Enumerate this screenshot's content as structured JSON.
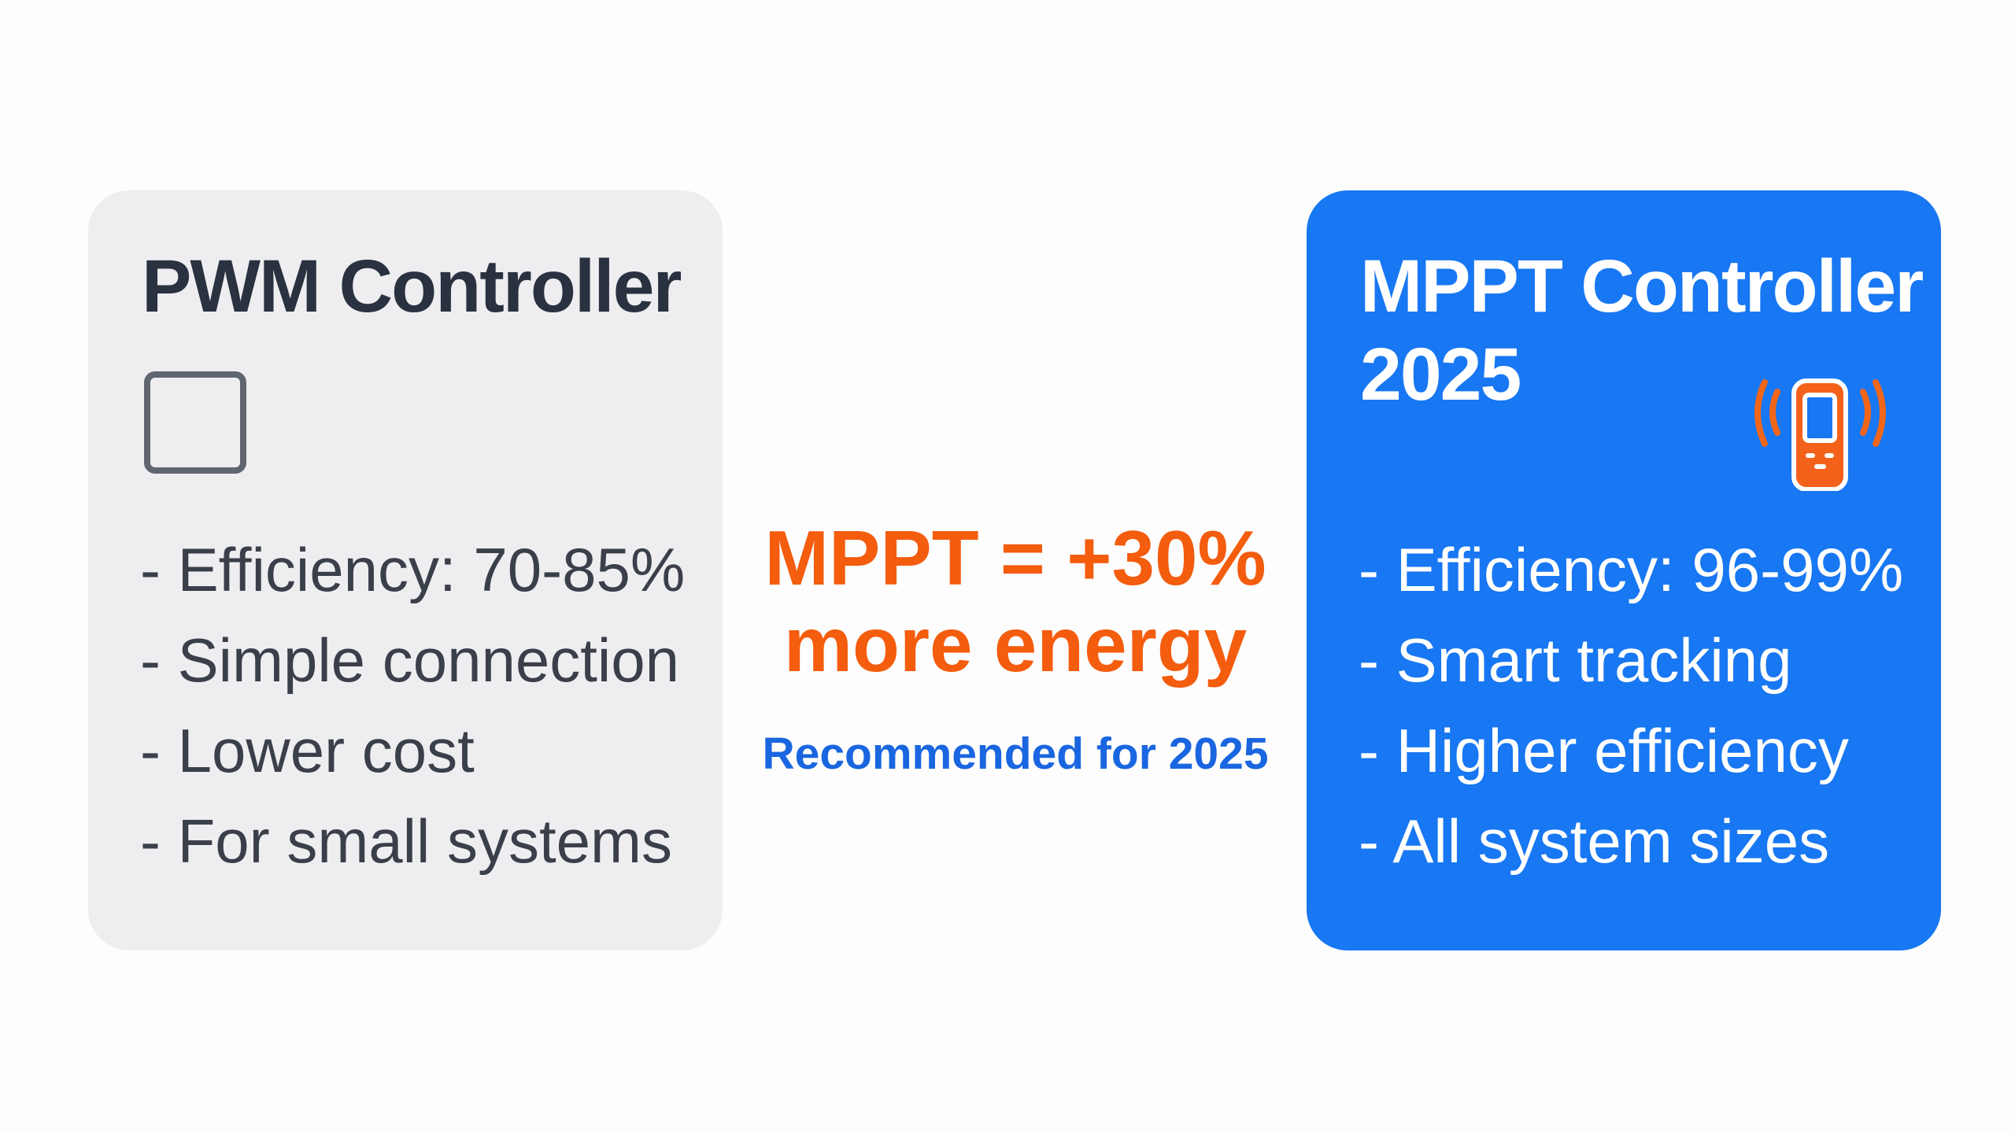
{
  "colors": {
    "pwm_card_bg": "#eeeef0",
    "mppt_card_bg": "#1877f2",
    "accent_orange": "#f45c0e",
    "accent_blue": "#1a66e0"
  },
  "pwm": {
    "title": "PWM Controller",
    "icon": "empty-square-icon",
    "items": [
      "- Efficiency: 70-85%",
      "- Simple connection",
      "- Lower cost",
      "- For small systems"
    ]
  },
  "mppt": {
    "title_line1": "MPPT Controller",
    "title_line2": "2025",
    "icon": "smartphone-signal-icon",
    "items": [
      "- Efficiency: 96-99%",
      "- Smart tracking",
      "- Higher efficiency",
      "- All system sizes"
    ]
  },
  "center": {
    "headline_line1": "MPPT = +30%",
    "headline_line2": "more energy",
    "recommendation": "Recommended for 2025"
  }
}
